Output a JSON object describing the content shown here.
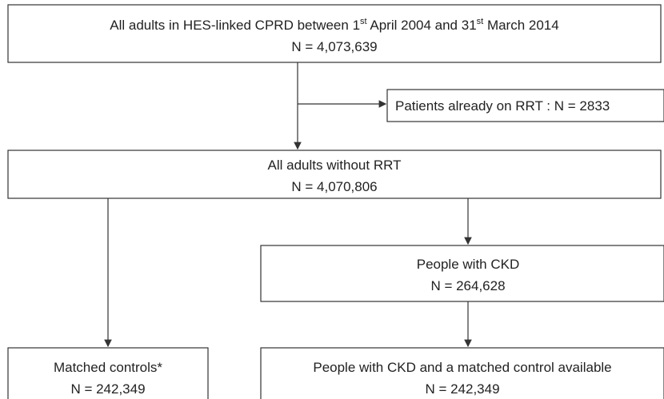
{
  "nodes": [
    {
      "line1": [
        "All adults in HES-linked CPRD between 1",
        "st",
        " April 2004 and 31",
        "st",
        " March 2014"
      ],
      "line2": "N = 4,073,639"
    },
    {
      "line1": "Patients already on RRT : N = 2833"
    },
    {
      "line1": "All adults without RRT",
      "line2": "N = 4,070,806"
    },
    {
      "line1": "People with CKD",
      "line2": "N = 264,628"
    },
    {
      "line1": "Matched controls*",
      "line2": "N = 242,349"
    },
    {
      "line1": "People with CKD and a matched control available",
      "line2": "N = 242,349"
    }
  ]
}
